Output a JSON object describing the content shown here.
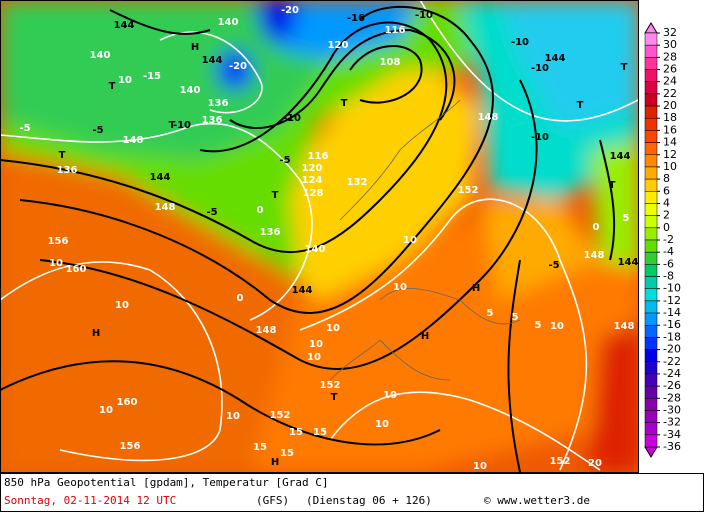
{
  "map": {
    "labels": [
      "144",
      "140",
      "-20",
      "-16",
      "-10",
      "120",
      "116",
      "108",
      "-10",
      "144",
      "-10",
      "T",
      "T",
      "H",
      "144",
      "-20",
      "-15",
      "T",
      "10",
      "140",
      "136",
      "140",
      "-5",
      "-5",
      "140",
      "-10",
      "T",
      "136",
      "-10",
      "-5",
      "T",
      "116",
      "120",
      "124",
      "128",
      "132",
      "T",
      "0",
      "-5",
      "148",
      "144",
      "136",
      "140",
      "144",
      "148",
      "152",
      "10",
      "10",
      "H",
      "5",
      "10",
      "10",
      "10",
      "H",
      "152",
      "T",
      "10",
      "10",
      "152",
      "10",
      "15",
      "15",
      "15",
      "H",
      "15",
      "10",
      "152",
      "20",
      "H",
      "160",
      "156",
      "10",
      "10",
      "160",
      "10",
      "156",
      "136",
      "T",
      "0",
      "148",
      "-10",
      "144",
      "T",
      "5",
      "0",
      "148",
      "144",
      "-5",
      "5",
      "10",
      "148",
      "5"
    ]
  },
  "colorbar": {
    "levels": [
      32,
      30,
      28,
      26,
      24,
      22,
      20,
      18,
      16,
      14,
      12,
      10,
      8,
      6,
      4,
      2,
      0,
      -2,
      -4,
      -6,
      -8,
      -10,
      -12,
      -14,
      -16,
      -18,
      -20,
      -22,
      -24,
      -26,
      -28,
      -30,
      -32,
      -34,
      -36
    ],
    "colors": [
      "#ff88ee",
      "#ff55cc",
      "#ff3399",
      "#ee1166",
      "#dd0044",
      "#cc0022",
      "#dd2200",
      "#ee3300",
      "#ff4400",
      "#ff6600",
      "#ff8800",
      "#ffaa00",
      "#ffcc00",
      "#ffee00",
      "#eeff00",
      "#ccff00",
      "#99ee00",
      "#66dd00",
      "#33cc33",
      "#00cc66",
      "#00ccaa",
      "#00dddd",
      "#00bbee",
      "#0099ff",
      "#0066ff",
      "#0033ff",
      "#0000ee",
      "#2200cc",
      "#4400bb",
      "#6600aa",
      "#8800aa",
      "#9900bb",
      "#aa00cc",
      "#cc00dd"
    ]
  },
  "caption": {
    "title": "850 hPa Geopotential [gpdam], Temperatur [Grad C]",
    "date": "Sonntag, 02-11-2014  12 UTC",
    "model": "(GFS)",
    "run": "(Dienstag 06 + 126)",
    "credit": "© www.wetter3.de"
  }
}
